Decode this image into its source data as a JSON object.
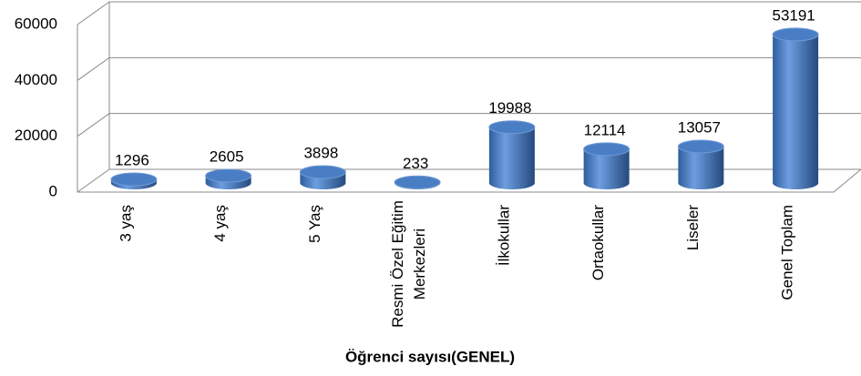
{
  "chart_data": {
    "type": "bar",
    "x_label": "Öğrenci sayısı(GENEL)",
    "categories": [
      "3 yaş",
      "4 yaş",
      "5 Yaş",
      "Resmi Özel Eğitim Merkezleri",
      "İlkokullar",
      "Ortaokullar",
      "Liseler",
      "Genel Toplam"
    ],
    "values": [
      1296,
      2605,
      3898,
      233,
      19988,
      12114,
      13057,
      53191
    ],
    "color": "#4a7ec4",
    "ylim": [
      0,
      60000
    ],
    "yticks": [
      0,
      20000,
      40000,
      60000
    ],
    "grid": true
  }
}
